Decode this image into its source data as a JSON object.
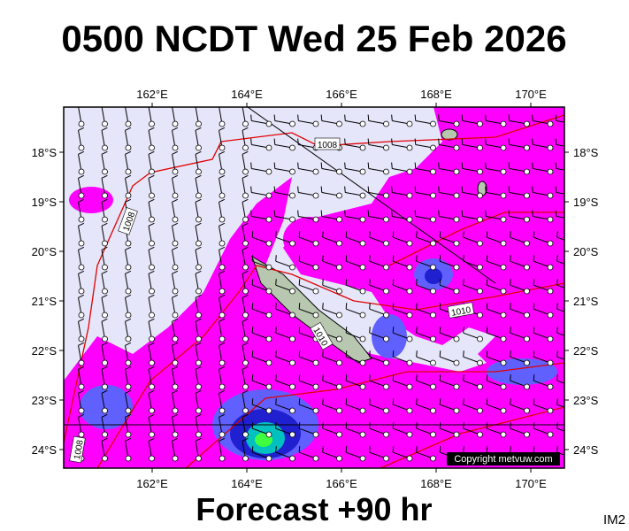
{
  "title": "0500 NCDT Wed 25 Feb 2026",
  "lon_labels": [
    "162°E",
    "164°E",
    "166°E",
    "168°E",
    "170°E"
  ],
  "lat_labels": [
    "18°S",
    "19°S",
    "20°S",
    "21°S",
    "22°S",
    "23°S",
    "24°S"
  ],
  "isobar_labels": [
    "1008",
    "1008",
    "1010",
    "1010",
    "1008"
  ],
  "copyright": "Copyright metvuw.com",
  "footer": "Forecast +90 hr",
  "code": "IM2"
}
